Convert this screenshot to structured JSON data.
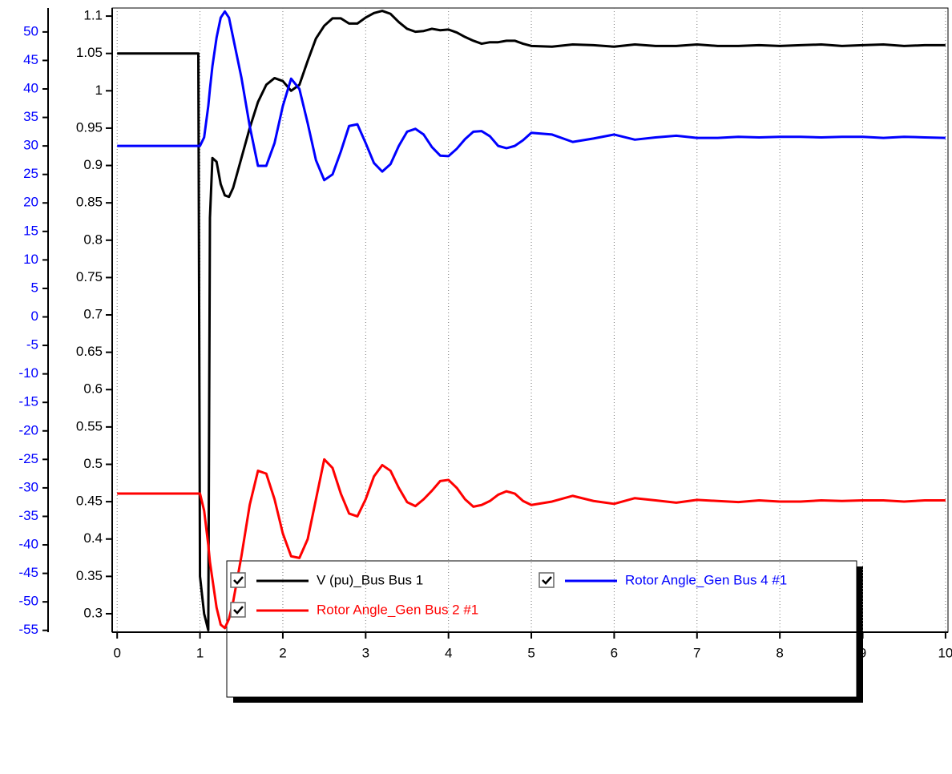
{
  "chart_data": {
    "type": "line",
    "x": [
      0,
      0.5,
      0.98,
      1.0,
      1.05,
      1.1,
      1.12,
      1.15,
      1.2,
      1.25,
      1.3,
      1.35,
      1.4,
      1.5,
      1.6,
      1.7,
      1.8,
      1.9,
      2.0,
      2.1,
      2.2,
      2.3,
      2.4,
      2.5,
      2.6,
      2.7,
      2.8,
      2.9,
      3.0,
      3.1,
      3.2,
      3.3,
      3.4,
      3.5,
      3.6,
      3.7,
      3.8,
      3.9,
      4.0,
      4.1,
      4.2,
      4.3,
      4.4,
      4.5,
      4.6,
      4.7,
      4.8,
      4.9,
      5.0,
      5.25,
      5.5,
      5.75,
      6.0,
      6.25,
      6.5,
      6.75,
      7,
      7.25,
      7.5,
      7.75,
      8,
      8.25,
      8.5,
      8.75,
      9,
      9.25,
      9.5,
      9.75,
      10
    ],
    "series": [
      {
        "name": "V (pu)_Bus Bus 1",
        "color": "#000000",
        "axis": "y",
        "values": [
          1.05,
          1.05,
          1.05,
          0.35,
          0.3,
          0.278,
          0.83,
          0.91,
          0.905,
          0.875,
          0.86,
          0.858,
          0.87,
          0.91,
          0.95,
          0.985,
          1.008,
          1.017,
          1.013,
          1.0,
          1.008,
          1.04,
          1.07,
          1.087,
          1.097,
          1.097,
          1.09,
          1.09,
          1.098,
          1.104,
          1.107,
          1.103,
          1.092,
          1.083,
          1.079,
          1.08,
          1.083,
          1.081,
          1.082,
          1.078,
          1.072,
          1.067,
          1.063,
          1.065,
          1.065,
          1.067,
          1.067,
          1.063,
          1.06,
          1.059,
          1.062,
          1.061,
          1.059,
          1.062,
          1.06,
          1.06,
          1.062,
          1.06,
          1.06,
          1.061,
          1.06,
          1.061,
          1.062,
          1.06,
          1.061,
          1.062,
          1.06,
          1.061,
          1.061
        ]
      },
      {
        "name": "Rotor Angle_Gen Bus 4 #1",
        "color": "#0000ff",
        "axis": "y2",
        "values": [
          30,
          30,
          30,
          30,
          31.5,
          37,
          40,
          44,
          49,
          52.5,
          53.6,
          52.5,
          49,
          42,
          33.5,
          26.5,
          26.5,
          30.5,
          37,
          41.8,
          40,
          34,
          27.5,
          24,
          25,
          29,
          33.5,
          33.8,
          30.5,
          27,
          25.5,
          26.8,
          30,
          32.5,
          33,
          32,
          29.8,
          28.3,
          28.2,
          29.5,
          31.2,
          32.5,
          32.6,
          31.7,
          30,
          29.6,
          30,
          31,
          32.3,
          32,
          30.7,
          31.3,
          32,
          31.1,
          31.5,
          31.8,
          31.4,
          31.4,
          31.6,
          31.5,
          31.6,
          31.6,
          31.5,
          31.6,
          31.6,
          31.4,
          31.6,
          31.5,
          31.4
        ]
      },
      {
        "name": "Rotor Angle_Gen Bus 2 #1",
        "color": "#ff0000",
        "axis": "y2",
        "values": [
          -31,
          -31,
          -31,
          -31,
          -34,
          -40,
          -43,
          -46,
          -51,
          -54,
          -54.6,
          -53,
          -50,
          -42,
          -33,
          -27,
          -27.5,
          -32,
          -38,
          -42,
          -42.3,
          -39,
          -32,
          -25,
          -26.5,
          -31,
          -34.5,
          -35,
          -32,
          -28,
          -26,
          -27,
          -30,
          -32.5,
          -33.2,
          -32,
          -30.5,
          -28.8,
          -28.6,
          -30,
          -32,
          -33.3,
          -33,
          -32.3,
          -31.2,
          -30.6,
          -31,
          -32.3,
          -33,
          -32.4,
          -31.4,
          -32.3,
          -32.8,
          -31.8,
          -32.2,
          -32.6,
          -32.1,
          -32.3,
          -32.5,
          -32.2,
          -32.4,
          -32.4,
          -32.2,
          -32.3,
          -32.2,
          -32.2,
          -32.4,
          -32.2,
          -32.2
        ]
      }
    ],
    "xlim": [
      -0.06,
      10.03
    ],
    "xticks": [
      0,
      1,
      2,
      3,
      4,
      5,
      6,
      7,
      8,
      9,
      10
    ],
    "ylim": [
      0.2753,
      1.1108
    ],
    "yticks": [
      0.3,
      0.35,
      0.4,
      0.45,
      0.5,
      0.55,
      0.6,
      0.65,
      0.7,
      0.75,
      0.8,
      0.85,
      0.9,
      0.95,
      1,
      1.05,
      1.1
    ],
    "y2lim": [
      -55.32,
      54.2
    ],
    "y2ticks": [
      -55,
      -50,
      -45,
      -40,
      -35,
      -30,
      -25,
      -20,
      -15,
      -10,
      -5,
      0,
      5,
      10,
      15,
      20,
      25,
      30,
      35,
      40,
      45,
      50
    ],
    "y2color": "#0000ff",
    "grid": "x"
  }
}
